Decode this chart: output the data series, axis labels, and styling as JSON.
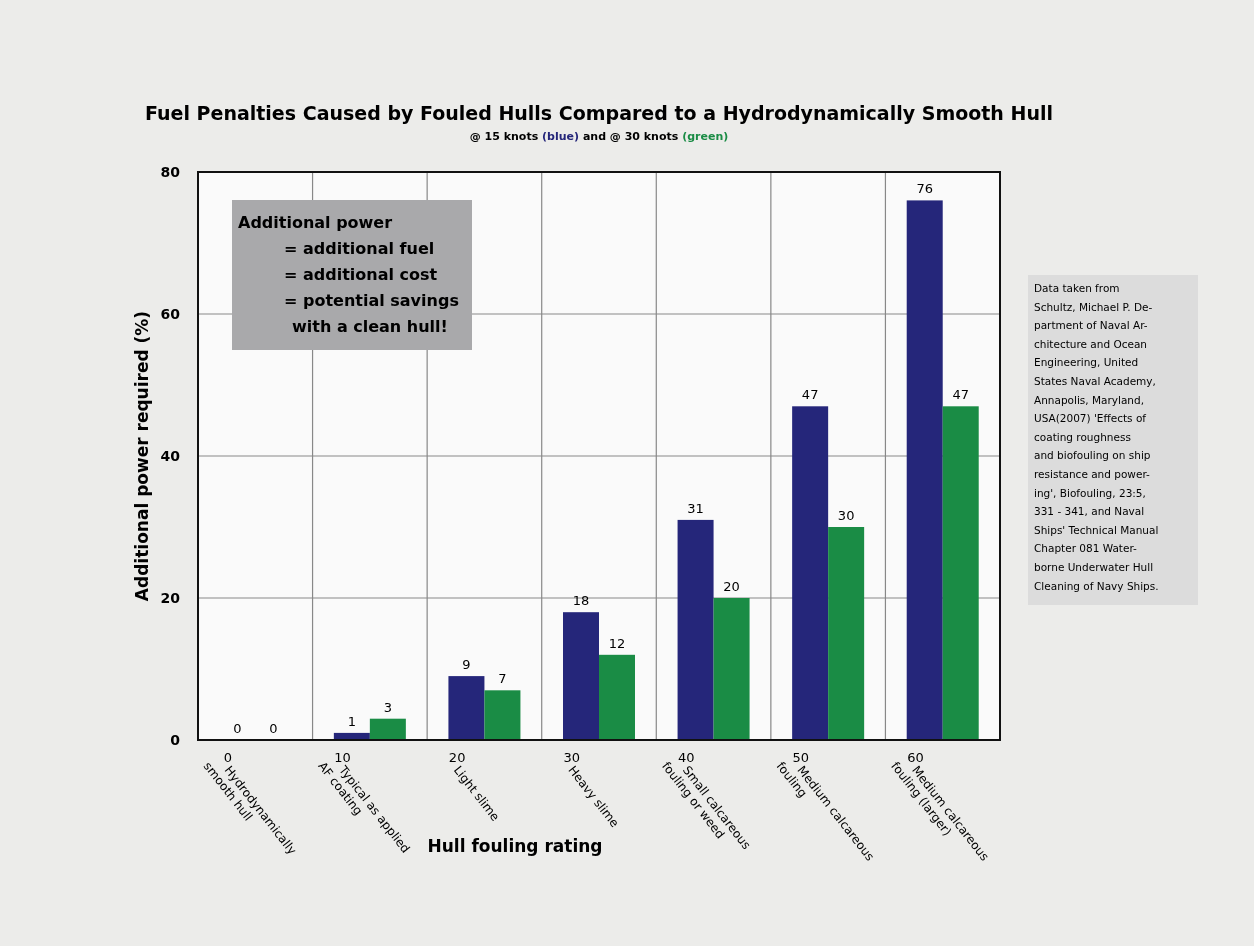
{
  "chart_data": {
    "type": "bar",
    "title": "Fuel Penalties Caused by Fouled Hulls Compared to a Hydrodynamically Smooth Hull",
    "subtitle": "@ 15 knots (blue) and @ 30 knots (green)",
    "xlabel": "Hull fouling rating",
    "ylabel": "Additional power required (%)",
    "categories": [
      "0\nHydrodynamically\nsmooth hull",
      "10\nTypical as applied\nAF coating",
      "20\nLight slime",
      "30\nHeavy slime",
      "40\nSmall calcareous\nfouling or weed",
      "50\nMedium calcareous\nfouling",
      "60\nMedium calcareous\nfouling (larger)"
    ],
    "series": [
      {
        "color": "#25267a",
        "values": [
          0,
          1,
          9,
          18,
          31,
          47,
          76
        ]
      },
      {
        "color": "#1a8c45",
        "values": [
          0,
          3,
          7,
          12,
          20,
          30,
          47
        ]
      }
    ],
    "ylim": [
      0,
      80
    ],
    "yticks": [
      0,
      20,
      40,
      60,
      80
    ],
    "grid": true,
    "data_labels": true,
    "annotations": [
      "Additional power\n= additional fuel\n= additional cost\n= potential savings\nwith a clean hull!",
      "Data taken from\nSchultz, Michael P. De-\npartment of Naval Ar-\nchitecture and Ocean\nEngineering, United\nStates Naval Academy,\nAnnapolis, Maryland,\nUSA(2007) 'Effects of\ncoating roughness\nand biofouling on ship\nresistance and power-\ning', Biofouling, 23:5,\n331 - 341, and Naval\nShips' Technical Manual\nChapter 081 Water-\nborne Underwater Hull\nCleaning of Navy Ships."
    ]
  }
}
